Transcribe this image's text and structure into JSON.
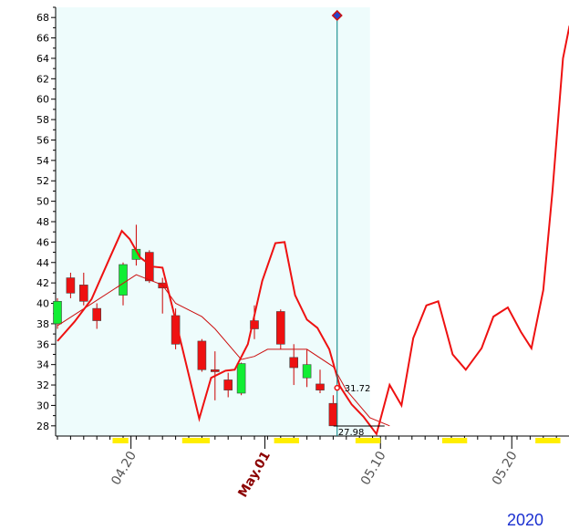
{
  "chart_data": {
    "type": "candlestick",
    "ylim": [
      27,
      69
    ],
    "yticks": [
      28,
      30,
      32,
      34,
      36,
      38,
      40,
      42,
      44,
      46,
      48,
      50,
      52,
      54,
      56,
      58,
      60,
      62,
      64,
      66,
      68
    ],
    "xrange": [
      0,
      40
    ],
    "date_labels": [
      {
        "label": "04.20",
        "x": 5.6,
        "bold": false
      },
      {
        "label": "May.01",
        "x": 15.8,
        "bold": true
      },
      {
        "label": "05.10",
        "x": 24.6,
        "bold": false
      },
      {
        "label": "05.20",
        "x": 34.6,
        "bold": false
      }
    ],
    "highlight_end_x": 23.8,
    "candles": [
      {
        "x": 0,
        "open": 38,
        "high": 40.5,
        "low": 37.5,
        "close": 40.2
      },
      {
        "x": 1,
        "open": 42.5,
        "high": 43,
        "low": 40.5,
        "close": 41
      },
      {
        "x": 2,
        "open": 41.8,
        "high": 43,
        "low": 39.8,
        "close": 40.2
      },
      {
        "x": 3,
        "open": 39.5,
        "high": 40,
        "low": 37.5,
        "close": 38.3
      },
      {
        "x": 5,
        "open": 40.8,
        "high": 44,
        "low": 39.8,
        "close": 43.8
      },
      {
        "x": 6,
        "open": 44.3,
        "high": 47.7,
        "low": 43.7,
        "close": 45.3
      },
      {
        "x": 7,
        "open": 45,
        "high": 45.2,
        "low": 42,
        "close": 42.2
      },
      {
        "x": 8,
        "open": 42,
        "high": 42.5,
        "low": 39,
        "close": 41.5
      },
      {
        "x": 9,
        "open": 38.8,
        "high": 39.5,
        "low": 35.5,
        "close": 36
      },
      {
        "x": 11,
        "open": 36.3,
        "high": 36.5,
        "low": 33.3,
        "close": 33.5
      },
      {
        "x": 12,
        "open": 33.5,
        "high": 35.3,
        "low": 30.5,
        "close": 33.3
      },
      {
        "x": 13,
        "open": 32.5,
        "high": 33.2,
        "low": 30.8,
        "close": 31.5
      },
      {
        "x": 14,
        "open": 31.2,
        "high": 34.2,
        "low": 31,
        "close": 34.1
      },
      {
        "x": 15,
        "open": 38.3,
        "high": 39.8,
        "low": 36.5,
        "close": 37.5
      },
      {
        "x": 17,
        "open": 39.2,
        "high": 39.4,
        "low": 35.5,
        "close": 36
      },
      {
        "x": 18,
        "open": 34.7,
        "high": 36,
        "low": 32,
        "close": 33.7
      },
      {
        "x": 19,
        "open": 32.7,
        "high": 35.5,
        "low": 31.8,
        "close": 34
      },
      {
        "x": 20,
        "open": 32.1,
        "high": 33.5,
        "low": 31.2,
        "close": 31.5
      },
      {
        "x": 21,
        "open": 30.2,
        "high": 31,
        "low": 28,
        "close": 28
      }
    ],
    "ma_line": [
      {
        "x": 0,
        "y": 37.8
      },
      {
        "x": 3,
        "y": 40.3
      },
      {
        "x": 6,
        "y": 42.8
      },
      {
        "x": 8,
        "y": 41.8
      },
      {
        "x": 9,
        "y": 40
      },
      {
        "x": 11,
        "y": 38.7
      },
      {
        "x": 12,
        "y": 37.5
      },
      {
        "x": 14,
        "y": 34.5
      },
      {
        "x": 15,
        "y": 34.8
      },
      {
        "x": 16,
        "y": 35.5
      },
      {
        "x": 19,
        "y": 35.5
      },
      {
        "x": 21,
        "y": 33.8
      },
      {
        "x": 22,
        "y": 31.5
      },
      {
        "x": 23.8,
        "y": 28.8
      },
      {
        "x": 25.3,
        "y": 28
      }
    ],
    "forecast_line": [
      {
        "x": 0,
        "y": 36.3
      },
      {
        "x": 1.3,
        "y": 38.2
      },
      {
        "x": 2.6,
        "y": 40.4
      },
      {
        "x": 4,
        "y": 44.5
      },
      {
        "x": 4.9,
        "y": 47.1
      },
      {
        "x": 5.5,
        "y": 46.3
      },
      {
        "x": 6.3,
        "y": 44.5
      },
      {
        "x": 7.2,
        "y": 43.6
      },
      {
        "x": 8,
        "y": 43.5
      },
      {
        "x": 8.8,
        "y": 39.4
      },
      {
        "x": 10,
        "y": 33
      },
      {
        "x": 10.8,
        "y": 28.7
      },
      {
        "x": 11.7,
        "y": 32.7
      },
      {
        "x": 12.8,
        "y": 33.4
      },
      {
        "x": 13.5,
        "y": 33.5
      },
      {
        "x": 14.5,
        "y": 36
      },
      {
        "x": 15.6,
        "y": 42.2
      },
      {
        "x": 16.6,
        "y": 45.9
      },
      {
        "x": 17.3,
        "y": 46
      },
      {
        "x": 18.1,
        "y": 40.8
      },
      {
        "x": 19,
        "y": 38.4
      },
      {
        "x": 19.8,
        "y": 37.6
      },
      {
        "x": 20.7,
        "y": 35.5
      },
      {
        "x": 21.5,
        "y": 31.9
      },
      {
        "x": 22.4,
        "y": 30.1
      },
      {
        "x": 23.3,
        "y": 28.9
      },
      {
        "x": 24.3,
        "y": 27.2
      },
      {
        "x": 25.3,
        "y": 32
      },
      {
        "x": 26.2,
        "y": 30
      },
      {
        "x": 27.1,
        "y": 36.6
      },
      {
        "x": 28.1,
        "y": 39.8
      },
      {
        "x": 29,
        "y": 40.2
      },
      {
        "x": 30.1,
        "y": 35
      },
      {
        "x": 31.1,
        "y": 33.5
      },
      {
        "x": 32.3,
        "y": 35.6
      },
      {
        "x": 33.2,
        "y": 38.7
      },
      {
        "x": 34.3,
        "y": 39.6
      },
      {
        "x": 35.3,
        "y": 37.2
      },
      {
        "x": 36.1,
        "y": 35.6
      },
      {
        "x": 37,
        "y": 41.3
      },
      {
        "x": 37.7,
        "y": 51
      },
      {
        "x": 38.5,
        "y": 64
      },
      {
        "x": 39,
        "y": 67.2
      }
    ],
    "current_price": {
      "label": "31.72",
      "x": 21.3,
      "y": 31.72
    },
    "low_price": {
      "label": "27.98",
      "x": 21.3,
      "y": 27.98
    },
    "cursor_x": 21.3,
    "cursor_marker_y": 68.2,
    "yellow_markers": [
      {
        "x0": 4.2,
        "x1": 5.4
      },
      {
        "x0": 9.5,
        "x1": 11.6
      },
      {
        "x0": 16.5,
        "x1": 18.4
      },
      {
        "x0": 22.7,
        "x1": 24.6
      },
      {
        "x0": 29.3,
        "x1": 31.2
      },
      {
        "x0": 36.4,
        "x1": 38.3
      }
    ],
    "year_label": "2020",
    "colors": {
      "up": "#11ee33",
      "down": "#ee1111",
      "line": "#ee1111",
      "ma": "#cc1111",
      "highlight": "#eefcfc",
      "cursor": "#008080",
      "marker": "#ffee00"
    }
  }
}
